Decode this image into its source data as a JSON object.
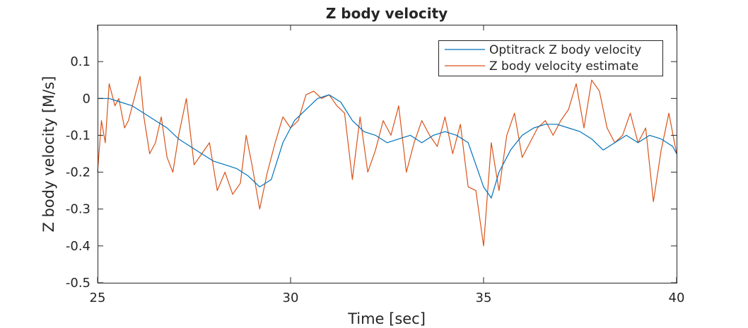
{
  "chart_data": {
    "type": "line",
    "title": "Z body velocity",
    "xlabel": "Time [sec]",
    "ylabel": "Z body velocity [M/s]",
    "xlim": [
      25,
      40
    ],
    "ylim": [
      -0.5,
      0.2
    ],
    "xticks": [
      25,
      30,
      35,
      40
    ],
    "yticks": [
      0.1,
      0,
      -0.1,
      -0.2,
      -0.3,
      -0.4,
      -0.5
    ],
    "xtick_labels": [
      "25",
      "30",
      "35",
      "40"
    ],
    "ytick_labels": [
      "0.1",
      "0",
      "-0.1",
      "-0.2",
      "-0.3",
      "-0.4",
      "-0.5"
    ],
    "grid": false,
    "legend_position": "top-right",
    "series": [
      {
        "name": "Optitrack Z body velocity",
        "color": "#0072bd",
        "x": [
          25.0,
          25.3,
          25.6,
          25.9,
          26.2,
          26.5,
          26.8,
          27.1,
          27.4,
          27.7,
          28.0,
          28.3,
          28.6,
          28.9,
          29.2,
          29.5,
          29.8,
          30.1,
          30.4,
          30.7,
          31.0,
          31.3,
          31.6,
          31.9,
          32.2,
          32.5,
          32.8,
          33.1,
          33.4,
          33.7,
          34.0,
          34.3,
          34.6,
          34.8,
          35.0,
          35.2,
          35.4,
          35.7,
          36.0,
          36.3,
          36.6,
          36.9,
          37.2,
          37.5,
          37.8,
          38.1,
          38.4,
          38.7,
          39.0,
          39.3,
          39.6,
          39.9,
          40.0
        ],
        "y": [
          0.0,
          0.0,
          -0.01,
          -0.02,
          -0.04,
          -0.06,
          -0.08,
          -0.11,
          -0.13,
          -0.15,
          -0.17,
          -0.18,
          -0.19,
          -0.21,
          -0.24,
          -0.22,
          -0.12,
          -0.06,
          -0.03,
          0.0,
          0.01,
          -0.01,
          -0.06,
          -0.09,
          -0.1,
          -0.12,
          -0.11,
          -0.1,
          -0.12,
          -0.1,
          -0.09,
          -0.1,
          -0.12,
          -0.18,
          -0.24,
          -0.27,
          -0.2,
          -0.14,
          -0.1,
          -0.08,
          -0.07,
          -0.07,
          -0.08,
          -0.09,
          -0.11,
          -0.14,
          -0.12,
          -0.1,
          -0.12,
          -0.1,
          -0.11,
          -0.13,
          -0.15
        ]
      },
      {
        "name": "Z body velocity estimate",
        "color": "#d95319",
        "x": [
          25.0,
          25.1,
          25.2,
          25.3,
          25.45,
          25.55,
          25.7,
          25.8,
          25.95,
          26.1,
          26.2,
          26.35,
          26.5,
          26.65,
          26.8,
          26.95,
          27.1,
          27.3,
          27.5,
          27.7,
          27.9,
          28.1,
          28.3,
          28.5,
          28.7,
          28.85,
          29.0,
          29.2,
          29.4,
          29.6,
          29.8,
          30.0,
          30.2,
          30.4,
          30.6,
          30.8,
          31.0,
          31.2,
          31.4,
          31.6,
          31.8,
          32.0,
          32.2,
          32.4,
          32.6,
          32.8,
          33.0,
          33.2,
          33.4,
          33.6,
          33.8,
          34.0,
          34.2,
          34.4,
          34.6,
          34.8,
          35.0,
          35.2,
          35.4,
          35.6,
          35.8,
          36.0,
          36.2,
          36.4,
          36.6,
          36.8,
          37.0,
          37.2,
          37.4,
          37.6,
          37.8,
          38.0,
          38.2,
          38.4,
          38.6,
          38.8,
          39.0,
          39.2,
          39.4,
          39.6,
          39.8,
          40.0
        ],
        "y": [
          -0.2,
          -0.06,
          -0.12,
          0.04,
          -0.02,
          0.0,
          -0.08,
          -0.06,
          0.0,
          0.06,
          -0.05,
          -0.15,
          -0.12,
          -0.05,
          -0.16,
          -0.2,
          -0.1,
          0.0,
          -0.18,
          -0.15,
          -0.12,
          -0.25,
          -0.2,
          -0.26,
          -0.23,
          -0.1,
          -0.18,
          -0.3,
          -0.2,
          -0.12,
          -0.05,
          -0.08,
          -0.06,
          0.01,
          0.02,
          0.0,
          0.01,
          -0.02,
          -0.04,
          -0.22,
          -0.05,
          -0.2,
          -0.14,
          -0.06,
          -0.1,
          -0.02,
          -0.2,
          -0.12,
          -0.06,
          -0.1,
          -0.13,
          -0.05,
          -0.15,
          -0.07,
          -0.24,
          -0.25,
          -0.4,
          -0.12,
          -0.25,
          -0.1,
          -0.04,
          -0.16,
          -0.12,
          -0.08,
          -0.06,
          -0.1,
          -0.06,
          -0.03,
          0.04,
          -0.08,
          0.05,
          0.02,
          -0.08,
          -0.12,
          -0.1,
          -0.04,
          -0.12,
          -0.08,
          -0.28,
          -0.14,
          -0.04,
          -0.15
        ]
      }
    ]
  }
}
